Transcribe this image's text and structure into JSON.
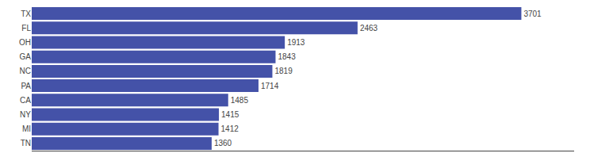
{
  "chart_data": {
    "type": "bar",
    "orientation": "horizontal",
    "categories": [
      "TN",
      "MI",
      "NY",
      "CA",
      "PA",
      "NC",
      "GA",
      "OH",
      "FL",
      "TX"
    ],
    "values": [
      1360,
      1412,
      1415,
      1485,
      1714,
      1819,
      1843,
      1913,
      2463,
      3701
    ],
    "color": "#4452a8",
    "xlim": [
      0,
      4100
    ],
    "grid": false,
    "data_labels": true,
    "tick_labels": "y"
  }
}
